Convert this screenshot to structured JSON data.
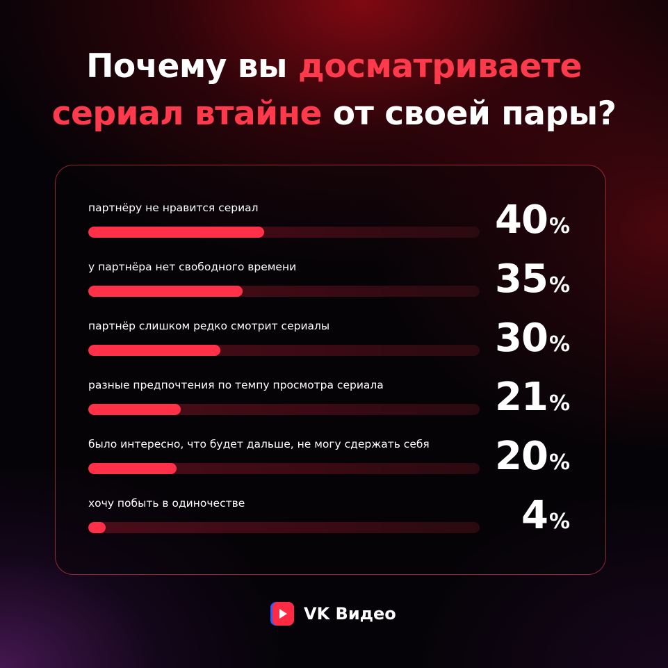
{
  "title": {
    "line1": {
      "plain": "Почему вы ",
      "highlight": "досматриваете"
    },
    "line2": {
      "highlight": "сериал втайне",
      "plain": " от своей пары?"
    }
  },
  "colors": {
    "accent": "#ff3a4c",
    "bar_fill": "#ff3048",
    "bar_track": "#3b0a14",
    "card_border": "#ff465a"
  },
  "chart_data": {
    "type": "bar",
    "orientation": "horizontal",
    "unit": "%",
    "xlim": [
      0,
      100
    ],
    "categories": [
      "партнёру не нравится сериал",
      "у партнёра нет свободного времени",
      "партнёр слишком редко смотрит сериалы",
      "разные предпочтения по темпу просмотра сериала",
      "было интересно, что будет дальше, не могу сдержать себя",
      "хочу побыть в одиночестве"
    ],
    "values": [
      40,
      35,
      30,
      21,
      20,
      4
    ]
  },
  "brand": {
    "icon": "vk-video-play-icon",
    "name": "VK Видео"
  }
}
